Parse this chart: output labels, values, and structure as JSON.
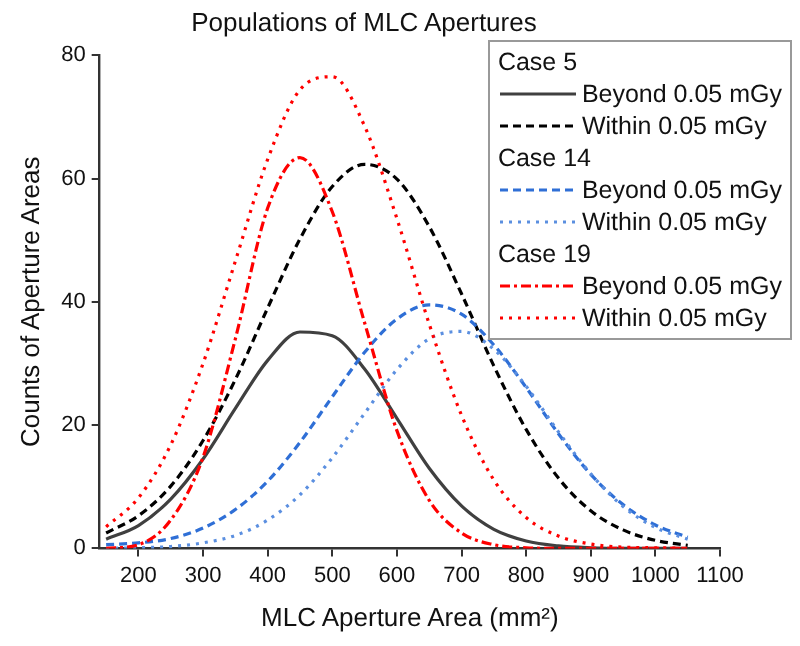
{
  "chart_data": {
    "type": "line",
    "title": "Populations of MLC Apertures",
    "xlabel": "MLC Aperture Area (mm²)",
    "ylabel": "Counts of Aperture Areas",
    "x": [
      150,
      200,
      250,
      300,
      350,
      400,
      450,
      500,
      550,
      600,
      650,
      700,
      750,
      800,
      850,
      900,
      950,
      1000,
      1050
    ],
    "xlim": [
      140,
      1100
    ],
    "xticks": [
      200,
      300,
      400,
      500,
      600,
      700,
      800,
      900,
      1000,
      1100
    ],
    "ylim": [
      0,
      80
    ],
    "yticks": [
      0,
      20,
      40,
      60,
      80
    ],
    "grid": false,
    "legend": "top right",
    "marker": "none",
    "annotations": [
      "Case 5",
      "Case 14",
      "Case 19"
    ],
    "series": [
      {
        "name": "Beyond 0.05 mGy",
        "color": "#404040",
        "line_style": "solid",
        "values": [
          1.5,
          3.7,
          8.0,
          14.5,
          22.7,
          30.5,
          35.1,
          34.5,
          29.1,
          21.1,
          13.0,
          6.9,
          3.1,
          1.2,
          0.4,
          0.1,
          0,
          0,
          0
        ]
      },
      {
        "name": "Within 0.05 mGy",
        "color": "#000000",
        "line_style": "dashed",
        "values": [
          2.5,
          5.3,
          10.1,
          17.5,
          27.4,
          39.0,
          50.2,
          58.7,
          62.3,
          59.9,
          52.2,
          41.3,
          29.6,
          19.3,
          11.4,
          6.1,
          3.0,
          1.3,
          0.5
        ]
      },
      {
        "name": "Beyond 0.05 mGy",
        "color": "#2f6fd6",
        "line_style": "dashed",
        "values": [
          0.6,
          0.9,
          1.6,
          3.3,
          6.3,
          10.9,
          17.2,
          24.6,
          31.8,
          37.2,
          39.5,
          38.0,
          33.0,
          26.1,
          18.6,
          12.0,
          7.1,
          3.8,
          1.8
        ]
      },
      {
        "name": "Within 0.05 mGy",
        "color": "#5b8fe0",
        "line_style": "dotted",
        "values": [
          0,
          0.1,
          0.3,
          0.9,
          2.1,
          4.6,
          8.7,
          14.7,
          21.9,
          29.0,
          34.0,
          35.2,
          32.3,
          26.3,
          18.9,
          12.1,
          6.8,
          3.4,
          1.5
        ]
      },
      {
        "name": "Beyond 0.05 mGy",
        "color": "#ff0000",
        "line_style": "dashdot",
        "values": [
          0,
          0.6,
          4.6,
          14.8,
          34.0,
          55.2,
          63.4,
          54.6,
          36.6,
          19.1,
          7.8,
          2.5,
          0.6,
          0.1,
          0,
          0,
          0,
          0,
          0
        ]
      },
      {
        "name": "Within 0.05 mGy",
        "color": "#ff0000",
        "line_style": "dotted",
        "values": [
          3.5,
          8.2,
          16.8,
          30.0,
          46.6,
          63.1,
          74.4,
          76.5,
          68.5,
          53.5,
          36.4,
          21.6,
          11.1,
          5.0,
          2.0,
          0.7,
          0.2,
          0.1,
          0
        ]
      }
    ]
  }
}
